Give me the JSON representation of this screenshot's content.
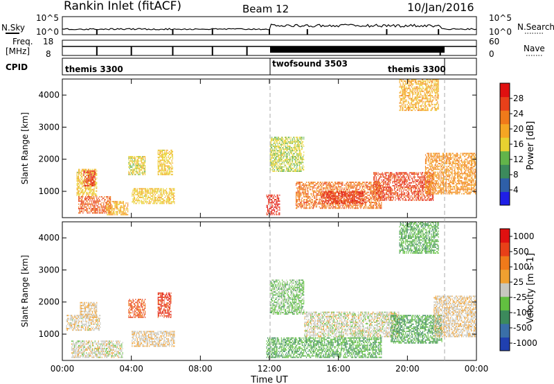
{
  "header": {
    "station": "Rankin Inlet (fitACF)",
    "beam": "Beam 12",
    "date": "10/Jan/2016"
  },
  "panels": {
    "nsky": {
      "label": "N.Sky",
      "ticks_left": [
        "10^5",
        "10^0"
      ],
      "ticks_right": [
        "10^5",
        "10^0"
      ],
      "right_label": "N.Search"
    },
    "freq": {
      "label_line1": "Freq.",
      "label_line2": "[MHz]",
      "ticks_left": [
        "18",
        "8"
      ],
      "ticks_right": [
        "60",
        "0"
      ],
      "right_label": "Nave"
    },
    "cpid": {
      "label": "CPID",
      "segments": [
        "themis 3300",
        "twofsound 3503",
        "themis 3300"
      ]
    }
  },
  "axes": {
    "ylabel": "Slant Range [km]",
    "yticks": [
      "1000",
      "2000",
      "3000",
      "4000"
    ],
    "xticks": [
      "00:00",
      "04:00",
      "08:00",
      "12:00",
      "16:00",
      "20:00",
      "00:00"
    ],
    "xlabel": "Time UT"
  },
  "colorbars": {
    "power": {
      "label": "Power [dB]",
      "ticks": [
        "4",
        "8",
        "12",
        "16",
        "20",
        "24",
        "28"
      ],
      "colors": [
        "#1f1fe6",
        "#2e5fa8",
        "#3c8a5c",
        "#62b44a",
        "#e8d230",
        "#f5a623",
        "#f07a1a",
        "#e8401a",
        "#e01010"
      ]
    },
    "velocity": {
      "label": "Velocity [m s-1]",
      "ticks": [
        "1000",
        "500",
        "100",
        "25",
        "-25",
        "-100",
        "-500",
        "-1000"
      ],
      "colors": [
        "#2040b0",
        "#3a6fa8",
        "#3c8a5c",
        "#62c040",
        "#c8c8c0",
        "#f0a030",
        "#f07a1a",
        "#e84018",
        "#e01010"
      ]
    }
  },
  "chart_data": [
    {
      "type": "heatmap",
      "title": "Power",
      "x_range": [
        "00:00",
        "24:00"
      ],
      "ylim": [
        180,
        4500
      ],
      "ylabel": "Slant Range [km]",
      "xlabel": "",
      "colorbar_label": "Power [dB]",
      "colorbar_range": [
        0,
        30
      ],
      "blobs": [
        {
          "t0": 0.8,
          "t1": 2.0,
          "r0": 850,
          "r1": 1700,
          "v": 16
        },
        {
          "t0": 1.2,
          "t1": 1.9,
          "r0": 1150,
          "r1": 1650,
          "v": 26
        },
        {
          "t0": 0.9,
          "t1": 2.8,
          "r0": 300,
          "r1": 850,
          "v": 24
        },
        {
          "t0": 2.5,
          "t1": 3.8,
          "r0": 250,
          "r1": 700,
          "v": 18
        },
        {
          "t0": 3.8,
          "t1": 4.8,
          "r0": 1500,
          "r1": 2100,
          "v": 15
        },
        {
          "t0": 5.5,
          "t1": 6.4,
          "r0": 1500,
          "r1": 2300,
          "v": 16
        },
        {
          "t0": 4.0,
          "t1": 6.5,
          "r0": 600,
          "r1": 1100,
          "v": 16
        },
        {
          "t0": 11.8,
          "t1": 12.6,
          "r0": 250,
          "r1": 900,
          "v": 27
        },
        {
          "t0": 12.0,
          "t1": 14.0,
          "r0": 1600,
          "r1": 2700,
          "v": 14
        },
        {
          "t0": 13.5,
          "t1": 18.5,
          "r0": 450,
          "r1": 1300,
          "v": 22
        },
        {
          "t0": 15.0,
          "t1": 17.5,
          "r0": 600,
          "r1": 1000,
          "v": 26
        },
        {
          "t0": 18.0,
          "t1": 21.5,
          "r0": 700,
          "r1": 1600,
          "v": 25
        },
        {
          "t0": 21.0,
          "t1": 24.0,
          "r0": 900,
          "r1": 2200,
          "v": 20
        },
        {
          "t0": 19.5,
          "t1": 21.8,
          "r0": 3500,
          "r1": 4500,
          "v": 18
        }
      ]
    },
    {
      "type": "heatmap",
      "title": "Velocity",
      "x_range": [
        "00:00",
        "24:00"
      ],
      "ylim": [
        180,
        4500
      ],
      "ylabel": "Slant Range [km]",
      "xlabel": "Time UT",
      "colorbar_label": "Velocity [m s-1]",
      "colorbar_range": [
        -1000,
        1000
      ],
      "blobs": [
        {
          "t0": 0.2,
          "t1": 2.2,
          "r0": 1100,
          "r1": 1600,
          "v": 60
        },
        {
          "t0": 1.0,
          "t1": 2.0,
          "r0": 1500,
          "r1": 2000,
          "v": 120
        },
        {
          "t0": 0.5,
          "t1": 3.5,
          "r0": 250,
          "r1": 800,
          "v": 0
        },
        {
          "t0": 3.8,
          "t1": 4.8,
          "r0": 1500,
          "r1": 2100,
          "v": 600
        },
        {
          "t0": 5.5,
          "t1": 6.3,
          "r0": 1500,
          "r1": 2300,
          "v": 700
        },
        {
          "t0": 4.0,
          "t1": 6.5,
          "r0": 600,
          "r1": 1100,
          "v": 80
        },
        {
          "t0": 11.8,
          "t1": 18.5,
          "r0": 250,
          "r1": 900,
          "v": -300
        },
        {
          "t0": 12.0,
          "t1": 14.0,
          "r0": 1600,
          "r1": 2700,
          "v": -200
        },
        {
          "t0": 14.0,
          "t1": 19.5,
          "r0": 900,
          "r1": 1700,
          "v": 0
        },
        {
          "t0": 19.0,
          "t1": 22.0,
          "r0": 700,
          "r1": 1600,
          "v": -350
        },
        {
          "t0": 21.5,
          "t1": 24.0,
          "r0": 900,
          "r1": 2200,
          "v": 80
        },
        {
          "t0": 19.5,
          "t1": 21.8,
          "r0": 3500,
          "r1": 4500,
          "v": -300
        }
      ]
    }
  ]
}
